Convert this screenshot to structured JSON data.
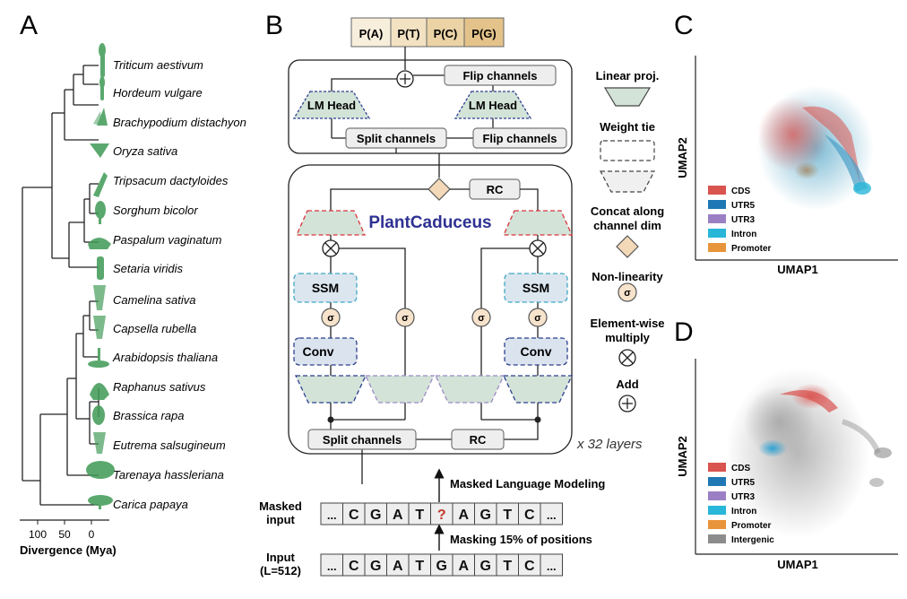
{
  "panel_a": {
    "letter": "A",
    "species": [
      "Triticum aestivum",
      "Hordeum vulgare",
      "Brachypodium distachyon",
      "Oryza sativa",
      "Tripsacum dactyloides",
      "Sorghum bicolor",
      "Paspalum vaginatum",
      "Setaria viridis",
      "Camelina sativa",
      "Capsella rubella",
      "Arabidopsis thaliana",
      "Raphanus sativus",
      "Brassica rapa",
      "Eutrema salsugineum",
      "Tarenaya hassleriana",
      "Carica papaya"
    ],
    "axis_ticks": [
      "100",
      "50",
      "0"
    ],
    "axis_label": "Divergence (Mya)"
  },
  "panel_b": {
    "letter": "B",
    "outputs": [
      "P(A)",
      "P(T)",
      "P(C)",
      "P(G)"
    ],
    "flip_channels": "Flip channels",
    "lm_head": "LM Head",
    "split_channels": "Split channels",
    "rc": "RC",
    "model_name": "PlantCaduceus",
    "ssm": "SSM",
    "conv": "Conv",
    "sigma": "σ",
    "layers": "x 32 layers",
    "mlm_label": "Masked Language Modeling",
    "masked_input_label": [
      "Masked",
      "input"
    ],
    "masked_seq": [
      "...",
      "C",
      "G",
      "A",
      "T",
      "?",
      "A",
      "G",
      "T",
      "C",
      "..."
    ],
    "masking_label": "Masking 15% of positions",
    "input_label": [
      "Input",
      "(L=512)"
    ],
    "input_seq": [
      "...",
      "C",
      "G",
      "A",
      "T",
      "G",
      "A",
      "G",
      "T",
      "C",
      "..."
    ],
    "legend": {
      "linear": "Linear proj.",
      "weight_tie": "Weight tie",
      "concat": [
        "Concat along",
        "channel dim"
      ],
      "nonlin": "Non-linearity",
      "elementwise": [
        "Element-wise",
        "multiply"
      ],
      "add": "Add"
    }
  },
  "panel_c": {
    "letter": "C",
    "xlabel": "UMAP1",
    "ylabel": "UMAP2",
    "legend": [
      {
        "label": "CDS",
        "color": "#d9534f"
      },
      {
        "label": "UTR5",
        "color": "#1f78b4"
      },
      {
        "label": "UTR3",
        "color": "#9b7fc4"
      },
      {
        "label": "Intron",
        "color": "#29b6d8"
      },
      {
        "label": "Promoter",
        "color": "#e8943a"
      }
    ]
  },
  "panel_d": {
    "letter": "D",
    "xlabel": "UMAP1",
    "ylabel": "UMAP2",
    "legend": [
      {
        "label": "CDS",
        "color": "#d9534f"
      },
      {
        "label": "UTR5",
        "color": "#1f78b4"
      },
      {
        "label": "UTR3",
        "color": "#9b7fc4"
      },
      {
        "label": "Intron",
        "color": "#29b6d8"
      },
      {
        "label": "Promoter",
        "color": "#e8943a"
      },
      {
        "label": "Intergenic",
        "color": "#8c8c8c"
      }
    ]
  }
}
